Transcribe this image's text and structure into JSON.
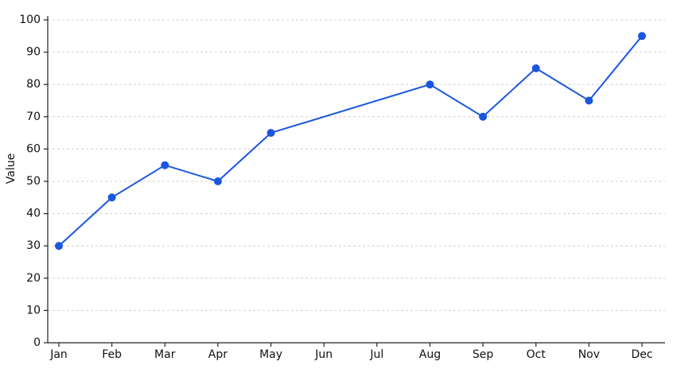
{
  "chart_data": {
    "type": "line",
    "y_label": "Value",
    "categories": [
      "Jan",
      "Feb",
      "Mar",
      "Apr",
      "May",
      "Jun",
      "Jul",
      "Aug",
      "Sep",
      "Oct",
      "Nov",
      "Dec"
    ],
    "series": [
      {
        "name": "Value",
        "color": "#1a56e0",
        "values": [
          30,
          45,
          55,
          50,
          65,
          null,
          null,
          80,
          70,
          85,
          75,
          95
        ]
      }
    ],
    "ylim": [
      0,
      100
    ],
    "yticks": [
      0,
      10,
      20,
      30,
      40,
      50,
      60,
      70,
      80,
      90,
      100
    ],
    "grid": true,
    "connect_gaps": true
  }
}
